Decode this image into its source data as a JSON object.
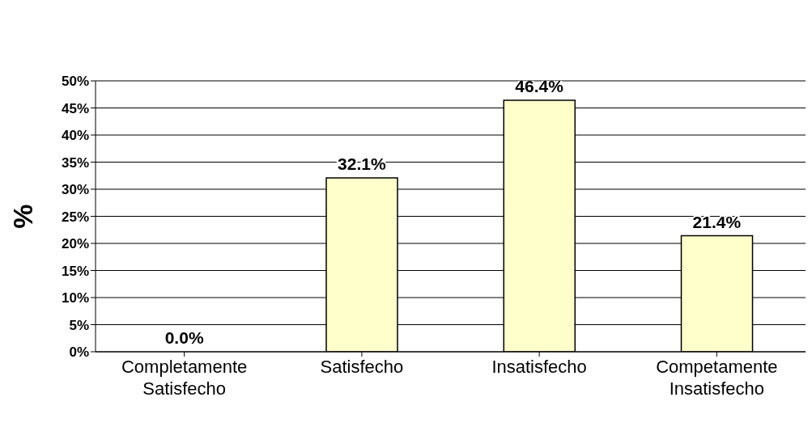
{
  "chart_data": {
    "type": "bar",
    "ylabel": "%",
    "categories": [
      "Completamente Satisfecho",
      "Satisfecho",
      "Insatisfecho",
      "Competamente Insatisfecho"
    ],
    "values": [
      0,
      32.1,
      46.4,
      21.4
    ],
    "value_labels": [
      "0.0%",
      "32.1%",
      "46.4%",
      "21.4%"
    ],
    "color": "#ffffcc",
    "ylim": [
      0,
      50
    ],
    "yticks": [
      {
        "value": 0,
        "label": "0%"
      },
      {
        "value": 5,
        "label": "5%"
      },
      {
        "value": 10,
        "label": "10%"
      },
      {
        "value": 15,
        "label": "15%"
      },
      {
        "value": 20,
        "label": "20%"
      },
      {
        "value": 25,
        "label": "25%"
      },
      {
        "value": 30,
        "label": "30%"
      },
      {
        "value": 35,
        "label": "35%"
      },
      {
        "value": 40,
        "label": "40%"
      },
      {
        "value": 45,
        "label": "45%"
      },
      {
        "value": 50,
        "label": "50%"
      }
    ],
    "grid": "y",
    "legend": false
  }
}
